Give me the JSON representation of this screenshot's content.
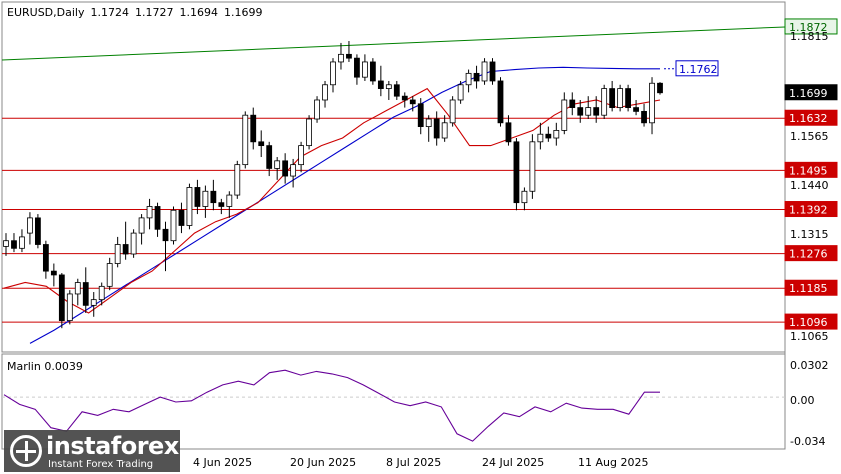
{
  "header": {
    "symbol_label": "EURUSD,Daily",
    "open": "1.1724",
    "high": "1.1727",
    "low": "1.1694",
    "close": "1.1699"
  },
  "indicator": {
    "label": "Marlin 0.0039",
    "ticks": [
      "0.0302",
      "0.00",
      "-0.034"
    ]
  },
  "price_ticks": [
    "1.1815",
    "1.1690",
    "1.1565",
    "1.1440",
    "1.1315",
    "1.1065"
  ],
  "date_labels": [
    "4 Jun 2025",
    "20 Jun 2025",
    "8 Jul 2025",
    "24 Jul 2025",
    "11 Aug 2025"
  ],
  "logo": {
    "name": "instaforex",
    "tagline": "Instant Forex Trading"
  },
  "colors": {
    "background": "#ffffff",
    "bull": "#ffffff",
    "bear": "#000000",
    "level": "#cc0000",
    "ma_fast": "#cc0000",
    "ma_slow": "#0000cc",
    "channel": "#008000",
    "oscillator": "#660099"
  },
  "chart_data": {
    "type": "candlestick",
    "symbol": "EURUSD",
    "timeframe": "Daily",
    "ylim": [
      1.102,
      1.1935
    ],
    "x_span_days": 120,
    "current_price": {
      "value": 1.1699,
      "label": "1.1699"
    },
    "levels": [
      {
        "value": 1.1632,
        "label": "1.1632"
      },
      {
        "value": 1.1495,
        "label": "1.1495"
      },
      {
        "value": 1.1392,
        "label": "1.1392"
      },
      {
        "value": 1.1276,
        "label": "1.1276"
      },
      {
        "value": 1.1185,
        "label": "1.1185"
      },
      {
        "value": 1.1096,
        "label": "1.1096"
      }
    ],
    "trendline": {
      "label": "1.1872",
      "value": 1.1872,
      "start": 1.1785
    },
    "ma_slow_label": {
      "value": 1.1762,
      "label": "1.1762"
    },
    "candles": [
      [
        1.1295,
        1.133,
        1.127,
        1.131
      ],
      [
        1.131,
        1.133,
        1.128,
        1.129
      ],
      [
        1.129,
        1.134,
        1.128,
        1.132
      ],
      [
        1.133,
        1.1385,
        1.13,
        1.137
      ],
      [
        1.137,
        1.138,
        1.129,
        1.13
      ],
      [
        1.13,
        1.131,
        1.121,
        1.123
      ],
      [
        1.123,
        1.125,
        1.119,
        1.122
      ],
      [
        1.122,
        1.1225,
        1.108,
        1.11
      ],
      [
        1.11,
        1.118,
        1.109,
        1.117
      ],
      [
        1.117,
        1.121,
        1.114,
        1.12
      ],
      [
        1.12,
        1.124,
        1.112,
        1.114
      ],
      [
        1.114,
        1.1175,
        1.111,
        1.1155
      ],
      [
        1.1155,
        1.12,
        1.114,
        1.119
      ],
      [
        1.119,
        1.1265,
        1.118,
        1.125
      ],
      [
        1.125,
        1.132,
        1.124,
        1.13
      ],
      [
        1.13,
        1.136,
        1.126,
        1.1275
      ],
      [
        1.1275,
        1.134,
        1.1265,
        1.133
      ],
      [
        1.133,
        1.138,
        1.13,
        1.137
      ],
      [
        1.137,
        1.142,
        1.134,
        1.14
      ],
      [
        1.14,
        1.141,
        1.132,
        1.134
      ],
      [
        1.134,
        1.136,
        1.123,
        1.131
      ],
      [
        1.131,
        1.14,
        1.13,
        1.139
      ],
      [
        1.139,
        1.141,
        1.133,
        1.135
      ],
      [
        1.135,
        1.146,
        1.134,
        1.145
      ],
      [
        1.145,
        1.147,
        1.138,
        1.14
      ],
      [
        1.14,
        1.1455,
        1.137,
        1.144
      ],
      [
        1.144,
        1.147,
        1.139,
        1.141
      ],
      [
        1.141,
        1.142,
        1.138,
        1.14
      ],
      [
        1.14,
        1.144,
        1.137,
        1.143
      ],
      [
        1.143,
        1.152,
        1.142,
        1.151
      ],
      [
        1.151,
        1.165,
        1.15,
        1.164
      ],
      [
        1.164,
        1.166,
        1.155,
        1.157
      ],
      [
        1.157,
        1.16,
        1.153,
        1.156
      ],
      [
        1.156,
        1.157,
        1.148,
        1.15
      ],
      [
        1.15,
        1.153,
        1.147,
        1.152
      ],
      [
        1.152,
        1.154,
        1.146,
        1.148
      ],
      [
        1.148,
        1.1525,
        1.145,
        1.151
      ],
      [
        1.151,
        1.157,
        1.149,
        1.156
      ],
      [
        1.156,
        1.164,
        1.155,
        1.163
      ],
      [
        1.163,
        1.169,
        1.162,
        1.168
      ],
      [
        1.168,
        1.173,
        1.166,
        1.172
      ],
      [
        1.172,
        1.179,
        1.17,
        1.178
      ],
      [
        1.178,
        1.183,
        1.176,
        1.18
      ],
      [
        1.18,
        1.1835,
        1.178,
        1.179
      ],
      [
        1.179,
        1.18,
        1.172,
        1.174
      ],
      [
        1.174,
        1.18,
        1.173,
        1.178
      ],
      [
        1.178,
        1.179,
        1.172,
        1.173
      ],
      [
        1.173,
        1.177,
        1.169,
        1.171
      ],
      [
        1.171,
        1.173,
        1.168,
        1.172
      ],
      [
        1.172,
        1.173,
        1.168,
        1.169
      ],
      [
        1.169,
        1.17,
        1.166,
        1.168
      ],
      [
        1.168,
        1.169,
        1.165,
        1.167
      ],
      [
        1.167,
        1.1685,
        1.159,
        1.161
      ],
      [
        1.161,
        1.164,
        1.157,
        1.163
      ],
      [
        1.163,
        1.165,
        1.156,
        1.158
      ],
      [
        1.158,
        1.164,
        1.157,
        1.162
      ],
      [
        1.162,
        1.169,
        1.161,
        1.168
      ],
      [
        1.168,
        1.173,
        1.167,
        1.172
      ],
      [
        1.172,
        1.176,
        1.17,
        1.175
      ],
      [
        1.175,
        1.177,
        1.171,
        1.173
      ],
      [
        1.173,
        1.179,
        1.172,
        1.178
      ],
      [
        1.178,
        1.179,
        1.172,
        1.173
      ],
      [
        1.173,
        1.174,
        1.161,
        1.162
      ],
      [
        1.162,
        1.164,
        1.156,
        1.157
      ],
      [
        1.157,
        1.158,
        1.139,
        1.141
      ],
      [
        1.141,
        1.145,
        1.139,
        1.144
      ],
      [
        1.144,
        1.159,
        1.142,
        1.157
      ],
      [
        1.157,
        1.162,
        1.155,
        1.159
      ],
      [
        1.159,
        1.161,
        1.157,
        1.158
      ],
      [
        1.158,
        1.162,
        1.156,
        1.16
      ],
      [
        1.16,
        1.17,
        1.159,
        1.168
      ],
      [
        1.168,
        1.17,
        1.164,
        1.166
      ],
      [
        1.166,
        1.168,
        1.162,
        1.164
      ],
      [
        1.164,
        1.169,
        1.163,
        1.166
      ],
      [
        1.166,
        1.169,
        1.162,
        1.164
      ],
      [
        1.164,
        1.172,
        1.163,
        1.171
      ],
      [
        1.171,
        1.173,
        1.165,
        1.166
      ],
      [
        1.166,
        1.172,
        1.165,
        1.171
      ],
      [
        1.171,
        1.172,
        1.165,
        1.166
      ],
      [
        1.166,
        1.168,
        1.164,
        1.165
      ],
      [
        1.165,
        1.167,
        1.161,
        1.162
      ],
      [
        1.162,
        1.174,
        1.159,
        1.1724
      ],
      [
        1.1724,
        1.1727,
        1.1694,
        1.1699
      ]
    ],
    "ma_slow": [
      1.104,
      1.1075,
      1.1115,
      1.1155,
      1.1195,
      1.1235,
      1.1275,
      1.1315,
      1.1355,
      1.1395,
      1.1435,
      1.1475,
      1.1515,
      1.1555,
      1.1595,
      1.1635,
      1.1665,
      1.17,
      1.173,
      1.1755,
      1.176,
      1.1764,
      1.1766,
      1.1764,
      1.1763,
      1.1762,
      1.1762
    ],
    "ma_fast": [
      1.1185,
      1.12,
      1.119,
      1.115,
      1.112,
      1.116,
      1.12,
      1.123,
      1.128,
      1.133,
      1.136,
      1.138,
      1.141,
      1.147,
      1.153,
      1.156,
      1.158,
      1.162,
      1.165,
      1.168,
      1.171,
      1.164,
      1.156,
      1.156,
      1.158,
      1.16,
      1.164,
      1.167,
      1.168,
      1.166,
      1.167,
      1.168
    ],
    "oscillator": {
      "label": "Marlin 0.0039",
      "value": 0.0039,
      "ylim": [
        -0.04,
        0.032
      ],
      "values": [
        0.002,
        -0.006,
        -0.01,
        -0.025,
        -0.028,
        -0.012,
        -0.015,
        -0.01,
        -0.012,
        -0.006,
        0.0,
        -0.004,
        -0.003,
        0.004,
        0.01,
        0.013,
        0.01,
        0.02,
        0.022,
        0.018,
        0.021,
        0.019,
        0.016,
        0.01,
        0.003,
        -0.004,
        -0.007,
        -0.004,
        -0.008,
        -0.03,
        -0.036,
        -0.024,
        -0.013,
        -0.016,
        -0.008,
        -0.012,
        -0.005,
        -0.009,
        -0.01,
        -0.01,
        -0.014,
        0.004,
        0.004
      ]
    }
  }
}
